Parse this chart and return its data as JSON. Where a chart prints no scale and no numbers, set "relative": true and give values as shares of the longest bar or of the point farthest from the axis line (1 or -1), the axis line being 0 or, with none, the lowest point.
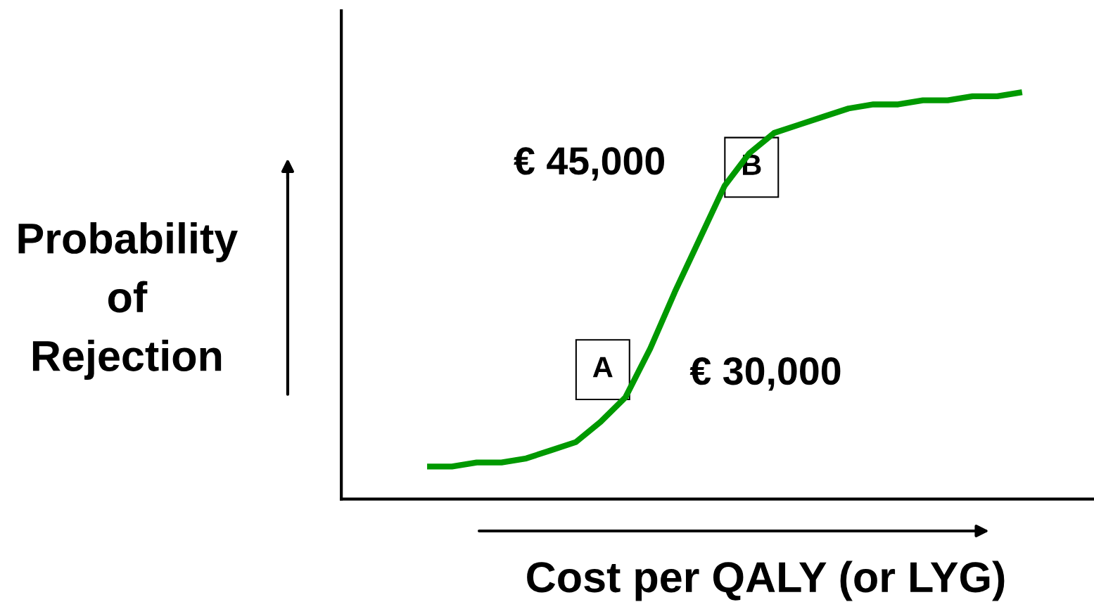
{
  "chart_data": {
    "type": "line",
    "relative": true,
    "xlabel": "Cost per QALY (or LYG)",
    "ylabel": "Probability\nof\nRejection",
    "categories": [
      null,
      null,
      null,
      null,
      null,
      null,
      null,
      null,
      null,
      null,
      null,
      null,
      null,
      null,
      null,
      null,
      null,
      null,
      null,
      null,
      null,
      null,
      null,
      null,
      null
    ],
    "series": [
      {
        "color": "#009900",
        "values": [
          0.08,
          0.08,
          0.09,
          0.09,
          0.1,
          0.12,
          0.14,
          0.19,
          0.25,
          0.37,
          0.51,
          0.64,
          0.77,
          0.85,
          0.9,
          0.92,
          0.94,
          0.96,
          0.97,
          0.97,
          0.98,
          0.98,
          0.99,
          0.99,
          1.0
        ]
      }
    ],
    "annotations": [
      "€ 45,000",
      "€ 30,000",
      "A",
      "B"
    ],
    "legend": false,
    "marker": "none",
    "line_style": "solid"
  }
}
